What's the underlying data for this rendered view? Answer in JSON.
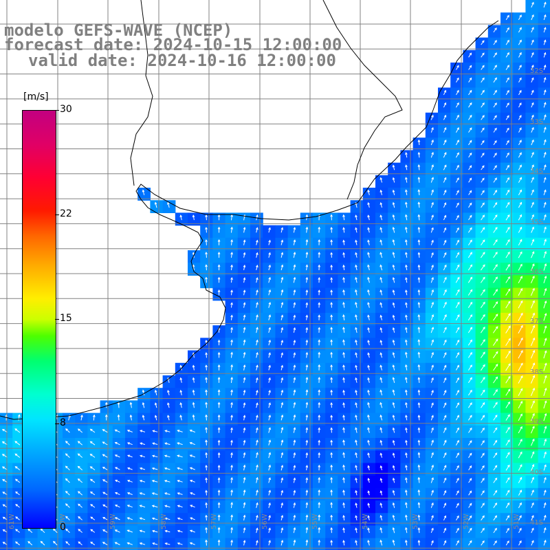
{
  "title": {
    "model": "modelo GEFS-WAVE (NCEP)",
    "forecast": "forecast date: 2024-10-15 12:00:00",
    "valid": "valid date: 2024-10-16 12:00:00"
  },
  "legend": {
    "unit": "[m/s]",
    "ticks": [
      "30",
      "22",
      "15",
      "8",
      "0"
    ],
    "colors": [
      "#0000ff",
      "#0066ff",
      "#00a8ff",
      "#00e5ff",
      "#00ffd0",
      "#00ff70",
      "#4dff00",
      "#ccff00",
      "#ffee00",
      "#ffaa00",
      "#ff6600",
      "#ff1a00",
      "#ff0033",
      "#c20080"
    ]
  },
  "lat_labels": [
    "32S",
    "33S",
    "34S",
    "35S",
    "36S",
    "37S",
    "38S",
    "39S",
    "40S",
    "41S"
  ],
  "lon_labels": [
    "61W",
    "60W",
    "59W",
    "58W",
    "57W",
    "56W",
    "55W",
    "54W",
    "53W",
    "52W",
    "51W"
  ],
  "colors": {
    "land": "#ffffff",
    "grid": "#808080",
    "coast": "#000000",
    "arrows": "#ffffff"
  }
}
